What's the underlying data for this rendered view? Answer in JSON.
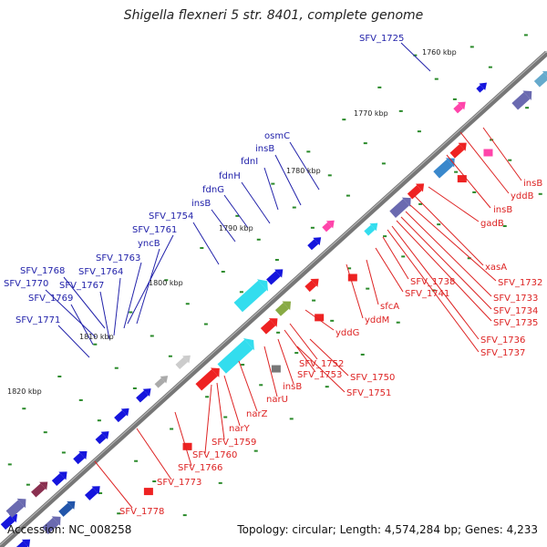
{
  "title": "Shigella flexneri 5 str. 8401, complete genome",
  "accession": "Accession: NC_008258",
  "topology": "Topology: circular; Length: 4,574,284 bp; Genes: 4,233",
  "colors": {
    "plus_label": "#2222aa",
    "minus_label": "#dd2222",
    "backbone": "#777777",
    "tick": "#2a8a2a"
  },
  "ticks": [
    "1760 kbp",
    "1770 kbp",
    "1780 kbp",
    "1790 kbp",
    "1800 kbp",
    "1810 kbp",
    "1820 kbp"
  ],
  "plus_labels": [
    "SFV_1725",
    "osmC",
    "insB",
    "fdnI",
    "fdnH",
    "fdnG",
    "insB",
    "SFV_1754",
    "SFV_1761",
    "yncB",
    "SFV_1763",
    "SFV_1764",
    "SFV_1767",
    "SFV_1768",
    "SFV_1770",
    "SFV_1769",
    "SFV_1771"
  ],
  "minus_labels": [
    "insB",
    "yddB",
    "insB",
    "gadB",
    "xasA",
    "SFV_1732",
    "SFV_1733",
    "SFV_1734",
    "SFV_1735",
    "SFV_1736",
    "SFV_1737",
    "SFV_1738",
    "SFV_1741",
    "sfcA",
    "yddM",
    "yddG",
    "SFV_1752",
    "SFV_1753",
    "SFV_1750",
    "SFV_1751",
    "insB",
    "narU",
    "narZ",
    "narY",
    "SFV_1759",
    "SFV_1760",
    "SFV_1766",
    "SFV_1773",
    "SFV_1778"
  ]
}
